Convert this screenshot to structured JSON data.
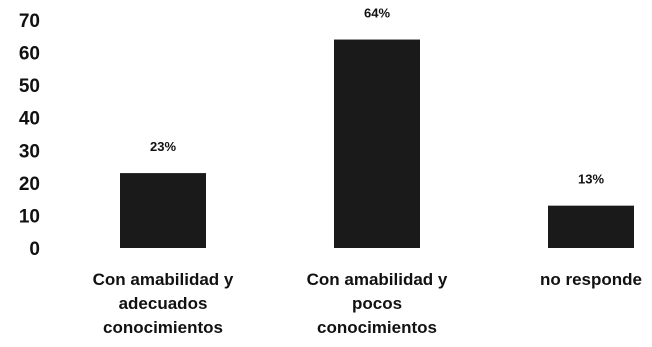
{
  "chart_data": {
    "type": "bar",
    "categories": [
      [
        "Con amabilidad y",
        "adecuados",
        "conocimientos"
      ],
      [
        "Con amabilidad y",
        "pocos",
        "conocimientos"
      ],
      [
        "no responde"
      ]
    ],
    "values": [
      23,
      64,
      13
    ],
    "data_labels": [
      "23%",
      "64%",
      "13%"
    ],
    "title": "",
    "xlabel": "",
    "ylabel": "",
    "ylim": [
      0,
      70
    ],
    "yticks": [
      0,
      10,
      20,
      30,
      40,
      50,
      60,
      70
    ],
    "grid": false,
    "legend": "none",
    "bar_color": "#1a1a1a"
  }
}
